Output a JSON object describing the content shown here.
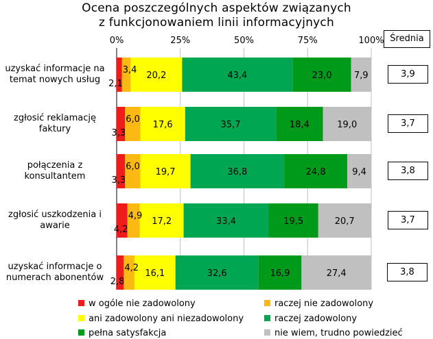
{
  "chart_data": {
    "type": "bar",
    "orientation": "horizontal",
    "stacked": true,
    "title_lines": [
      "Ocena poszczególnych aspektów związanych",
      "z funkcjonowaniem linii informacyjnych"
    ],
    "x_ticks": [
      "0%",
      "25%",
      "50%",
      "75%",
      "100%"
    ],
    "xlim": [
      0,
      100
    ],
    "categories": [
      [
        "uzyskać informacje na",
        "temat nowych usług"
      ],
      [
        "zgłosić reklamację",
        "faktury"
      ],
      [
        "połączenia z",
        "konsultantem"
      ],
      [
        "zgłosić uszkodzenia i",
        "awarie"
      ],
      [
        "uzyskać informacje o",
        "numerach abonentów"
      ]
    ],
    "series": [
      {
        "name": "w ogóle nie zadowolony",
        "color": "#ee1c1c",
        "values": [
          2.1,
          3.3,
          3.3,
          4.2,
          2.8
        ],
        "labels": [
          "2,1",
          "3,3",
          "3,3",
          "4,2",
          "2,8"
        ]
      },
      {
        "name": "raczej nie zadowolony",
        "color": "#fdb913",
        "values": [
          3.4,
          6.0,
          6.0,
          4.9,
          4.2
        ],
        "labels": [
          "3,4",
          "6,0",
          "6,0",
          "4,9",
          "4,2"
        ]
      },
      {
        "name": "ani zadowolony ani niezadowolony",
        "color": "#ffff00",
        "values": [
          20.2,
          17.6,
          19.7,
          17.2,
          16.1
        ],
        "labels": [
          "20,2",
          "17,6",
          "19,7",
          "17,2",
          "16,1"
        ]
      },
      {
        "name": "raczej zadowolony",
        "color": "#00a651",
        "values": [
          43.4,
          35.7,
          36.8,
          33.4,
          32.6
        ],
        "labels": [
          "43,4",
          "35,7",
          "36,8",
          "33,4",
          "32,6"
        ]
      },
      {
        "name": "pełna satysfakcja",
        "color": "#009a1a",
        "values": [
          23.0,
          18.4,
          24.8,
          19.5,
          16.9
        ],
        "labels": [
          "23,0",
          "18,4",
          "24,8",
          "19,5",
          "16,9"
        ]
      },
      {
        "name": "nie wiem, trudno powiedzieć",
        "color": "#c0c0c0",
        "values": [
          7.9,
          19.0,
          9.4,
          20.7,
          27.4
        ],
        "labels": [
          "7,9",
          "19,0",
          "9,4",
          "20,7",
          "27,4"
        ]
      }
    ],
    "average_header": "Średnia",
    "averages": [
      "3,9",
      "3,7",
      "3,8",
      "3,7",
      "3,8"
    ],
    "legend_position": "bottom"
  }
}
